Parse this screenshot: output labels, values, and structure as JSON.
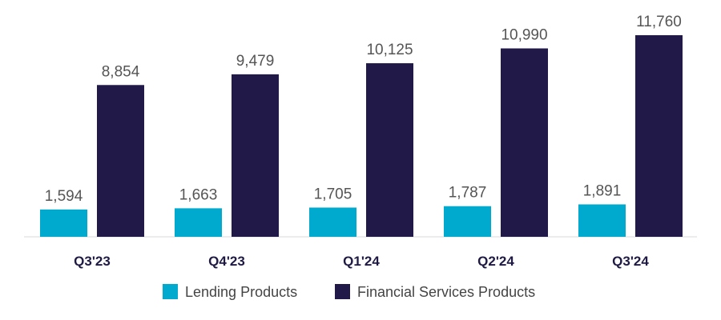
{
  "chart_data": {
    "type": "bar",
    "title": "",
    "xlabel": "",
    "ylabel": "",
    "categories": [
      "Q3'23",
      "Q4'23",
      "Q1'24",
      "Q2'24",
      "Q3'24"
    ],
    "series": [
      {
        "name": "Lending Products",
        "color": "#00a9ce",
        "values": [
          1594,
          1663,
          1705,
          1787,
          1891
        ],
        "labels": [
          "1,594",
          "1,663",
          "1,705",
          "1,787",
          "1,891"
        ]
      },
      {
        "name": "Financial Services Products",
        "color": "#211a48",
        "values": [
          8854,
          9479,
          10125,
          10990,
          11760
        ],
        "labels": [
          "8,854",
          "9,479",
          "10,125",
          "10,990",
          "11,760"
        ]
      }
    ],
    "ylim": [
      0,
      11760
    ],
    "grid": false,
    "legend_position": "bottom-center"
  }
}
